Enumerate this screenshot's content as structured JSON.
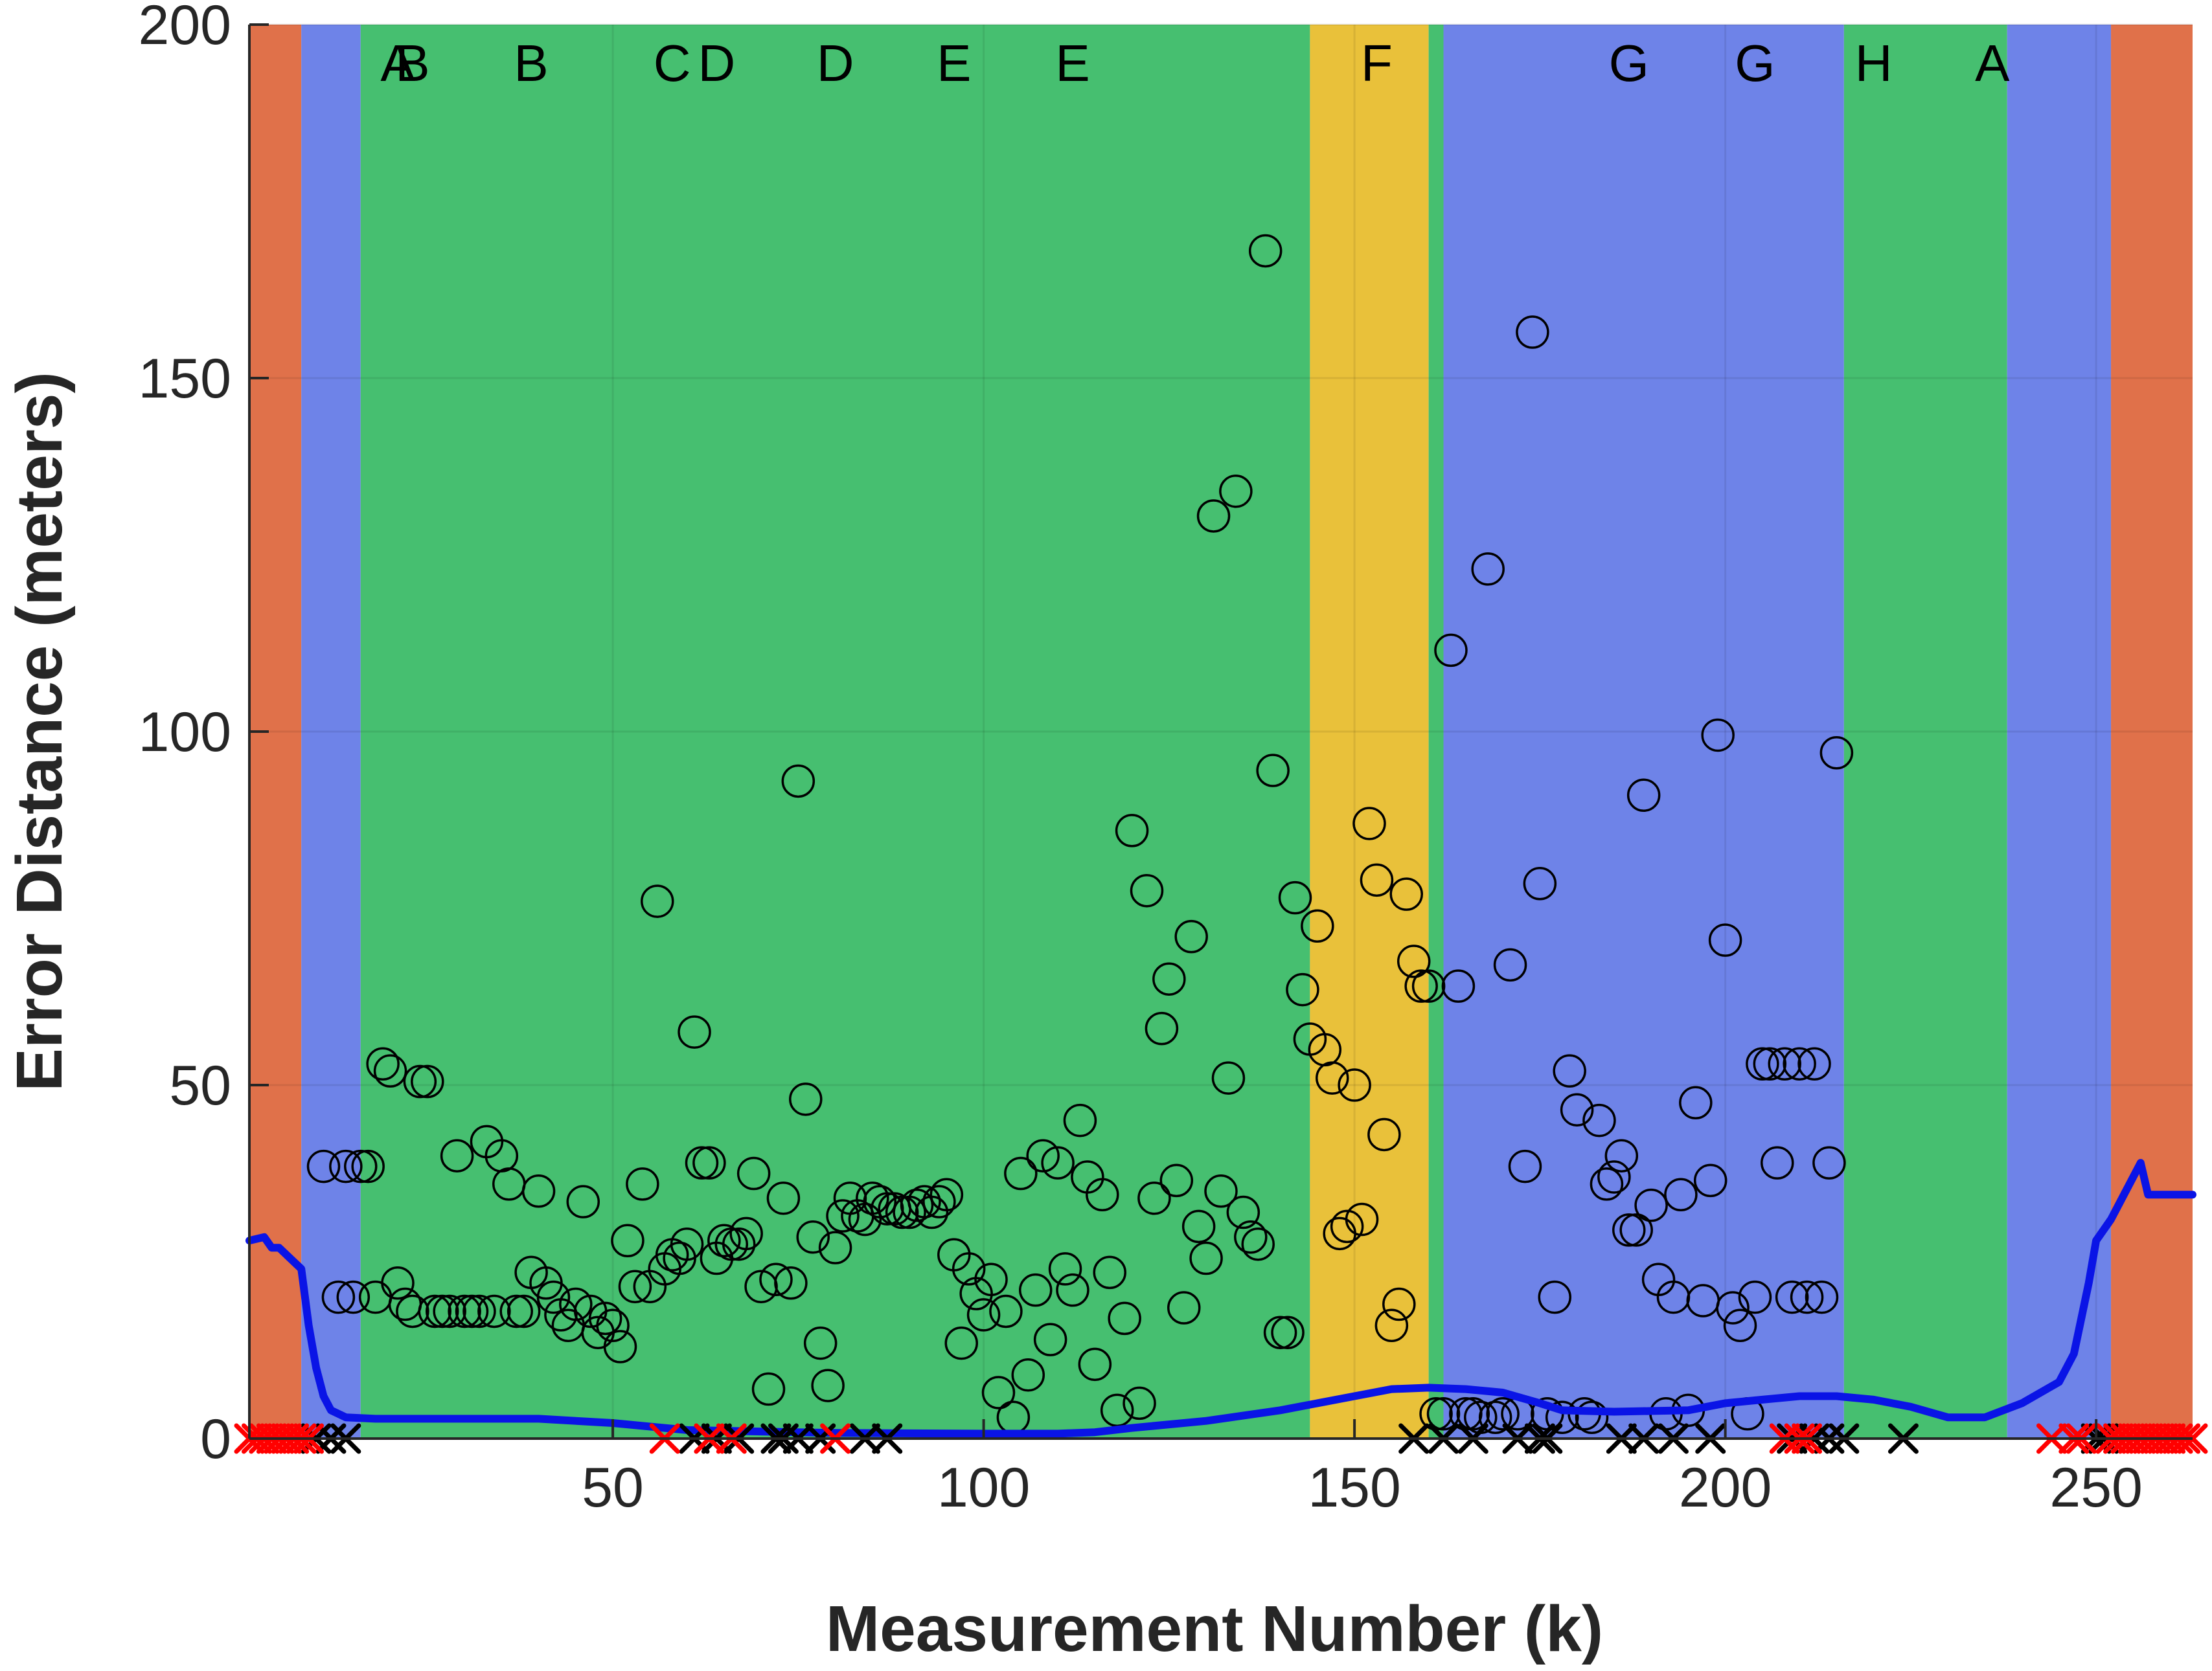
{
  "chart_data": {
    "type": "scatter",
    "title": "",
    "xlabel": "Measurement Number (k)",
    "ylabel": "Error Distance (meters)",
    "xlim": [
      1,
      263
    ],
    "ylim": [
      0,
      200
    ],
    "xticks": [
      50,
      100,
      150,
      200,
      250
    ],
    "yticks": [
      0,
      50,
      100,
      150,
      200
    ],
    "grid": true,
    "colors": {
      "orange": "#E0714A",
      "blue": "#6E83E8",
      "green": "#46BF70",
      "yellow": "#E9C13A",
      "line": "#0A14E6",
      "marker": "#000000",
      "cross_red": "#FF0000",
      "cross_black": "#000000"
    },
    "regions": [
      {
        "x0": 1,
        "x1": 8,
        "color": "orange"
      },
      {
        "x0": 8,
        "x1": 16,
        "color": "blue"
      },
      {
        "x0": 16,
        "x1": 144,
        "color": "green"
      },
      {
        "x0": 144,
        "x1": 160,
        "color": "yellow"
      },
      {
        "x0": 160,
        "x1": 162,
        "color": "green"
      },
      {
        "x0": 162,
        "x1": 216,
        "color": "blue"
      },
      {
        "x0": 216,
        "x1": 238,
        "color": "green"
      },
      {
        "x0": 238,
        "x1": 252,
        "color": "blue"
      },
      {
        "x0": 252,
        "x1": 263,
        "color": "orange"
      }
    ],
    "region_labels": [
      {
        "x": 21,
        "text": "A"
      },
      {
        "x": 23,
        "text": "B"
      },
      {
        "x": 39,
        "text": "B"
      },
      {
        "x": 58,
        "text": "C"
      },
      {
        "x": 64,
        "text": "D"
      },
      {
        "x": 80,
        "text": "D"
      },
      {
        "x": 96,
        "text": "E"
      },
      {
        "x": 112,
        "text": "E"
      },
      {
        "x": 153,
        "text": "F"
      },
      {
        "x": 187,
        "text": "G"
      },
      {
        "x": 204,
        "text": "G"
      },
      {
        "x": 220,
        "text": "H"
      },
      {
        "x": 236,
        "text": "A"
      }
    ],
    "series": [
      {
        "name": "error_circles",
        "marker": "circle",
        "points": [
          [
            11,
            38.5
          ],
          [
            13,
            20
          ],
          [
            14,
            38.5
          ],
          [
            15,
            20
          ],
          [
            16,
            38.5
          ],
          [
            17,
            38.5
          ],
          [
            18,
            20
          ],
          [
            19,
            53
          ],
          [
            20,
            52
          ],
          [
            21,
            22
          ],
          [
            22,
            19
          ],
          [
            23,
            18
          ],
          [
            24,
            50.5
          ],
          [
            25,
            50.5
          ],
          [
            26,
            18
          ],
          [
            27,
            18
          ],
          [
            28,
            18
          ],
          [
            29,
            40
          ],
          [
            30,
            18
          ],
          [
            31,
            18
          ],
          [
            32,
            18
          ],
          [
            33,
            42
          ],
          [
            34,
            18
          ],
          [
            35,
            40
          ],
          [
            36,
            36
          ],
          [
            37,
            18
          ],
          [
            38,
            18
          ],
          [
            39,
            23.5
          ],
          [
            40,
            35
          ],
          [
            41,
            22
          ],
          [
            42,
            20
          ],
          [
            43,
            17.5
          ],
          [
            44,
            16
          ],
          [
            45,
            19
          ],
          [
            46,
            33.5
          ],
          [
            47,
            18
          ],
          [
            48,
            15
          ],
          [
            49,
            17
          ],
          [
            50,
            16
          ],
          [
            51,
            13
          ],
          [
            52,
            28
          ],
          [
            53,
            21.5
          ],
          [
            54,
            36
          ],
          [
            55,
            21.5
          ],
          [
            56,
            76
          ],
          [
            57,
            24
          ],
          [
            58,
            26
          ],
          [
            59,
            25.5
          ],
          [
            60,
            27.5
          ],
          [
            61,
            57.5
          ],
          [
            62,
            39
          ],
          [
            63,
            39
          ],
          [
            64,
            25.5
          ],
          [
            65,
            28
          ],
          [
            66,
            27.5
          ],
          [
            67,
            27.5
          ],
          [
            68,
            29
          ],
          [
            69,
            37.5
          ],
          [
            70,
            21.5
          ],
          [
            71,
            7
          ],
          [
            72,
            22.5
          ],
          [
            73,
            34
          ],
          [
            74,
            22
          ],
          [
            75,
            93
          ],
          [
            76,
            48
          ],
          [
            77,
            28.5
          ],
          [
            78,
            13.5
          ],
          [
            79,
            7.5
          ],
          [
            80,
            27
          ],
          [
            81,
            31.5
          ],
          [
            82,
            34
          ],
          [
            83,
            31.5
          ],
          [
            84,
            31
          ],
          [
            85,
            34
          ],
          [
            86,
            33.5
          ],
          [
            87,
            32.5
          ],
          [
            88,
            32.5
          ],
          [
            89,
            32
          ],
          [
            90,
            32
          ],
          [
            91,
            33
          ],
          [
            92,
            33.5
          ],
          [
            93,
            32
          ],
          [
            94,
            33.5
          ],
          [
            95,
            34.5
          ],
          [
            96,
            26
          ],
          [
            97,
            13.5
          ],
          [
            98,
            24
          ],
          [
            99,
            20.5
          ],
          [
            100,
            17.5
          ],
          [
            101,
            22.5
          ],
          [
            102,
            6.5
          ],
          [
            103,
            18
          ],
          [
            104,
            3
          ],
          [
            105,
            37.5
          ],
          [
            106,
            9
          ],
          [
            107,
            21
          ],
          [
            108,
            40
          ],
          [
            109,
            14
          ],
          [
            110,
            39
          ],
          [
            111,
            24
          ],
          [
            112,
            21
          ],
          [
            113,
            45
          ],
          [
            114,
            37
          ],
          [
            115,
            10.5
          ],
          [
            116,
            34.5
          ],
          [
            117,
            23.5
          ],
          [
            118,
            4
          ],
          [
            119,
            17
          ],
          [
            120,
            86
          ],
          [
            121,
            5
          ],
          [
            122,
            77.5
          ],
          [
            123,
            34
          ],
          [
            124,
            58
          ],
          [
            125,
            65
          ],
          [
            126,
            36.5
          ],
          [
            127,
            18.5
          ],
          [
            128,
            71
          ],
          [
            129,
            30
          ],
          [
            130,
            25.5
          ],
          [
            131,
            130.5
          ],
          [
            132,
            35
          ],
          [
            133,
            51
          ],
          [
            134,
            134
          ],
          [
            135,
            32
          ],
          [
            136,
            28.5
          ],
          [
            137,
            27.5
          ],
          [
            138,
            168
          ],
          [
            139,
            94.5
          ],
          [
            140,
            15
          ],
          [
            141,
            15
          ],
          [
            142,
            76.5
          ],
          [
            143,
            63.5
          ],
          [
            144,
            56.5
          ],
          [
            145,
            72.5
          ],
          [
            146,
            55
          ],
          [
            147,
            51
          ],
          [
            148,
            29
          ],
          [
            149,
            30
          ],
          [
            150,
            50
          ],
          [
            151,
            31
          ],
          [
            152,
            87
          ],
          [
            153,
            79
          ],
          [
            154,
            43
          ],
          [
            155,
            16
          ],
          [
            156,
            19
          ],
          [
            157,
            77
          ],
          [
            158,
            67.5
          ],
          [
            159,
            64
          ],
          [
            160,
            64
          ],
          [
            161,
            3.5
          ],
          [
            162,
            3.5
          ],
          [
            163,
            111.5
          ],
          [
            164,
            64
          ],
          [
            165,
            3.5
          ],
          [
            166,
            3.5
          ],
          [
            167,
            3
          ],
          [
            168,
            123
          ],
          [
            169,
            3
          ],
          [
            170,
            3.5
          ],
          [
            171,
            67
          ],
          [
            172,
            3.5
          ],
          [
            173,
            38.5
          ],
          [
            174,
            156.5
          ],
          [
            175,
            78.5
          ],
          [
            176,
            3.5
          ],
          [
            177,
            20
          ],
          [
            178,
            3
          ],
          [
            179,
            52
          ],
          [
            180,
            46.5
          ],
          [
            181,
            3.5
          ],
          [
            182,
            3
          ],
          [
            183,
            45
          ],
          [
            184,
            36
          ],
          [
            185,
            37
          ],
          [
            186,
            40
          ],
          [
            187,
            29.5
          ],
          [
            188,
            29.5
          ],
          [
            189,
            91
          ],
          [
            190,
            33
          ],
          [
            191,
            22.5
          ],
          [
            192,
            3.5
          ],
          [
            193,
            20
          ],
          [
            194,
            34.5
          ],
          [
            195,
            4
          ],
          [
            196,
            47.5
          ],
          [
            197,
            19.5
          ],
          [
            198,
            36.5
          ],
          [
            199,
            99.5
          ],
          [
            200,
            70.5
          ],
          [
            201,
            18.5
          ],
          [
            202,
            16
          ],
          [
            203,
            3.5
          ],
          [
            204,
            20
          ],
          [
            205,
            53
          ],
          [
            206,
            53
          ],
          [
            207,
            39
          ],
          [
            208,
            53
          ],
          [
            209,
            20
          ],
          [
            210,
            53
          ],
          [
            211,
            20
          ],
          [
            212,
            53
          ],
          [
            213,
            20
          ],
          [
            214,
            39
          ],
          [
            215,
            97
          ]
        ]
      },
      {
        "name": "smoothed_error",
        "type": "line",
        "points": [
          [
            1,
            28
          ],
          [
            3,
            28.5
          ],
          [
            4,
            27
          ],
          [
            5,
            27
          ],
          [
            7,
            25
          ],
          [
            8,
            24
          ],
          [
            9,
            16
          ],
          [
            10,
            10
          ],
          [
            11,
            6
          ],
          [
            12,
            4
          ],
          [
            14,
            3
          ],
          [
            18,
            2.8
          ],
          [
            30,
            2.8
          ],
          [
            40,
            2.8
          ],
          [
            50,
            2.2
          ],
          [
            60,
            1.2
          ],
          [
            70,
            1
          ],
          [
            80,
            0.8
          ],
          [
            100,
            0.7
          ],
          [
            110,
            0.7
          ],
          [
            115,
            0.9
          ],
          [
            120,
            1.5
          ],
          [
            130,
            2.5
          ],
          [
            140,
            4
          ],
          [
            150,
            6
          ],
          [
            155,
            7
          ],
          [
            160,
            7.2
          ],
          [
            165,
            7
          ],
          [
            170,
            6.5
          ],
          [
            175,
            5
          ],
          [
            178,
            4
          ],
          [
            185,
            3.8
          ],
          [
            195,
            4
          ],
          [
            200,
            5
          ],
          [
            205,
            5.5
          ],
          [
            210,
            6
          ],
          [
            215,
            6
          ],
          [
            220,
            5.5
          ],
          [
            225,
            4.5
          ],
          [
            230,
            3
          ],
          [
            235,
            3
          ],
          [
            240,
            5
          ],
          [
            245,
            8
          ],
          [
            247,
            12
          ],
          [
            249,
            22
          ],
          [
            250,
            28
          ],
          [
            252,
            31
          ],
          [
            254,
            35
          ],
          [
            256,
            39
          ],
          [
            257,
            34.5
          ],
          [
            263,
            34.5
          ]
        ]
      },
      {
        "name": "red_crosses",
        "marker": "x",
        "color": "cross_red",
        "x": [
          1,
          2,
          3,
          4,
          5,
          6,
          7,
          8,
          9,
          57,
          63,
          66,
          80,
          208,
          210,
          211,
          244,
          247,
          248,
          252,
          253,
          254,
          255,
          256,
          257,
          258,
          259,
          260,
          261,
          262,
          263
        ]
      },
      {
        "name": "black_crosses",
        "marker": "x",
        "color": "cross_black",
        "x": [
          10,
          12,
          14,
          61,
          64,
          67,
          72,
          73,
          75,
          78,
          84,
          87,
          158,
          162,
          166,
          172,
          175,
          176,
          186,
          189,
          193,
          198,
          209,
          212,
          214,
          216,
          224,
          250,
          251
        ]
      }
    ]
  }
}
